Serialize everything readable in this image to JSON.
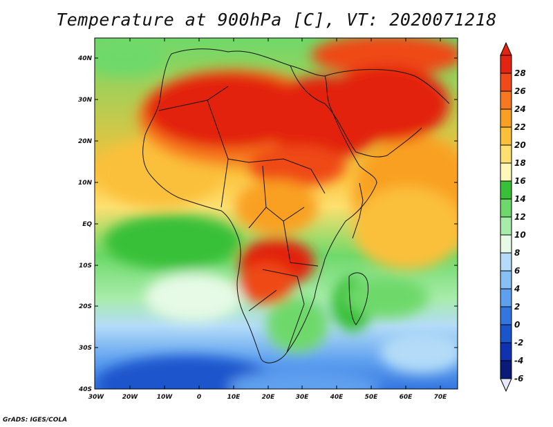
{
  "title": "Temperature at 900hPa [C], VT: 2020071218",
  "credit": "GrADS: IGES/COLA",
  "map": {
    "lat_labels": [
      "40N",
      "30N",
      "20N",
      "10N",
      "EQ",
      "10S",
      "20S",
      "30S",
      "40S"
    ],
    "lon_labels": [
      "30W",
      "20W",
      "10W",
      "0",
      "10E",
      "20E",
      "30E",
      "40E",
      "50E",
      "60E",
      "70E"
    ]
  },
  "colorbar": {
    "levels": [
      "28",
      "26",
      "24",
      "22",
      "20",
      "18",
      "16",
      "14",
      "12",
      "10",
      "8",
      "6",
      "4",
      "2",
      "0",
      "-2",
      "-4",
      "-6"
    ],
    "colors": [
      "#e22410",
      "#ef4a18",
      "#f7781f",
      "#f9a023",
      "#fbc03a",
      "#fde070",
      "#fdf8b8",
      "#38c038",
      "#6ed96a",
      "#a8ecaa",
      "#e6fae6",
      "#b4dcf8",
      "#86c0f5",
      "#5ea0ef",
      "#3476e0",
      "#1a55cc",
      "#0e32b0",
      "#0a1a78"
    ],
    "under_color": "#e8e8ff"
  }
}
